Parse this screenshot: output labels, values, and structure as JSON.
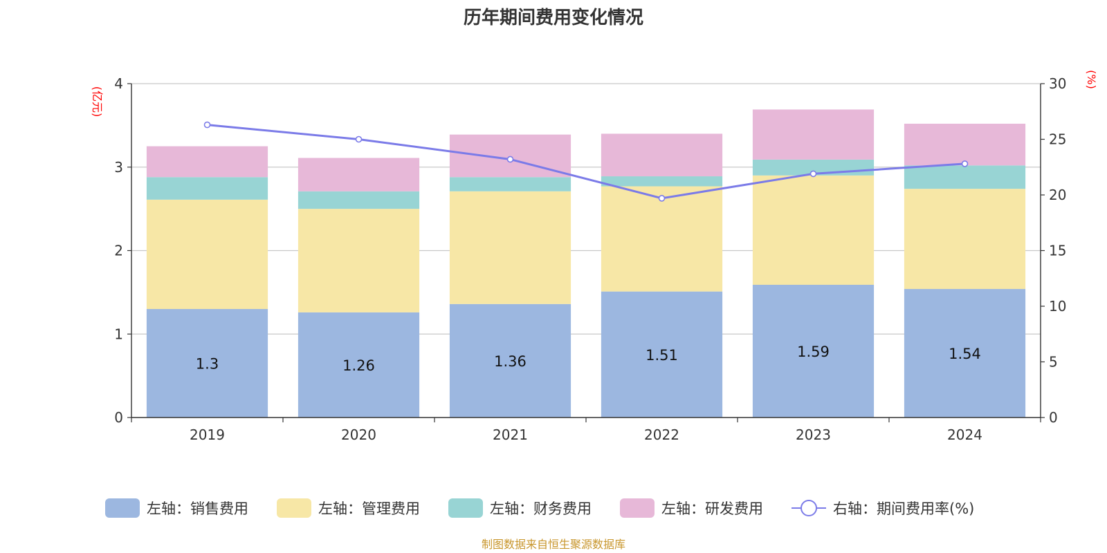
{
  "chart_data": {
    "type": "bar",
    "stacked": true,
    "title": "历年期间费用变化情况",
    "categories": [
      "2019",
      "2020",
      "2021",
      "2022",
      "2023",
      "2024"
    ],
    "left_axis": {
      "unit": "(亿元)",
      "ylim": [
        0,
        4
      ],
      "ticks": [
        "0",
        "1",
        "2",
        "3",
        "4"
      ]
    },
    "right_axis": {
      "unit": "(%)",
      "ylim": [
        0,
        30
      ],
      "ticks": [
        "0",
        "5",
        "10",
        "15",
        "20",
        "25",
        "30"
      ]
    },
    "series": [
      {
        "name": "左轴：销售费用",
        "axis": "left",
        "color": "#9cb7e0",
        "values": [
          1.3,
          1.26,
          1.36,
          1.51,
          1.59,
          1.54
        ],
        "show_labels": true
      },
      {
        "name": "左轴：管理费用",
        "axis": "left",
        "color": "#f7e7a6",
        "values": [
          1.31,
          1.24,
          1.35,
          1.26,
          1.31,
          1.2
        ]
      },
      {
        "name": "左轴：财务费用",
        "axis": "left",
        "color": "#98d4d4",
        "values": [
          0.27,
          0.21,
          0.17,
          0.12,
          0.19,
          0.28
        ]
      },
      {
        "name": "左轴：研发费用",
        "axis": "left",
        "color": "#e7b8d8",
        "values": [
          0.37,
          0.4,
          0.51,
          0.51,
          0.6,
          0.5
        ]
      }
    ],
    "line": {
      "name": "右轴：期间费用率(%)",
      "axis": "right",
      "color": "#7b7be8",
      "values": [
        26.3,
        25.0,
        23.2,
        19.7,
        21.9,
        22.8
      ]
    },
    "grid": true,
    "legend": "bottom",
    "source": "制图数据来自恒生聚源数据库"
  }
}
